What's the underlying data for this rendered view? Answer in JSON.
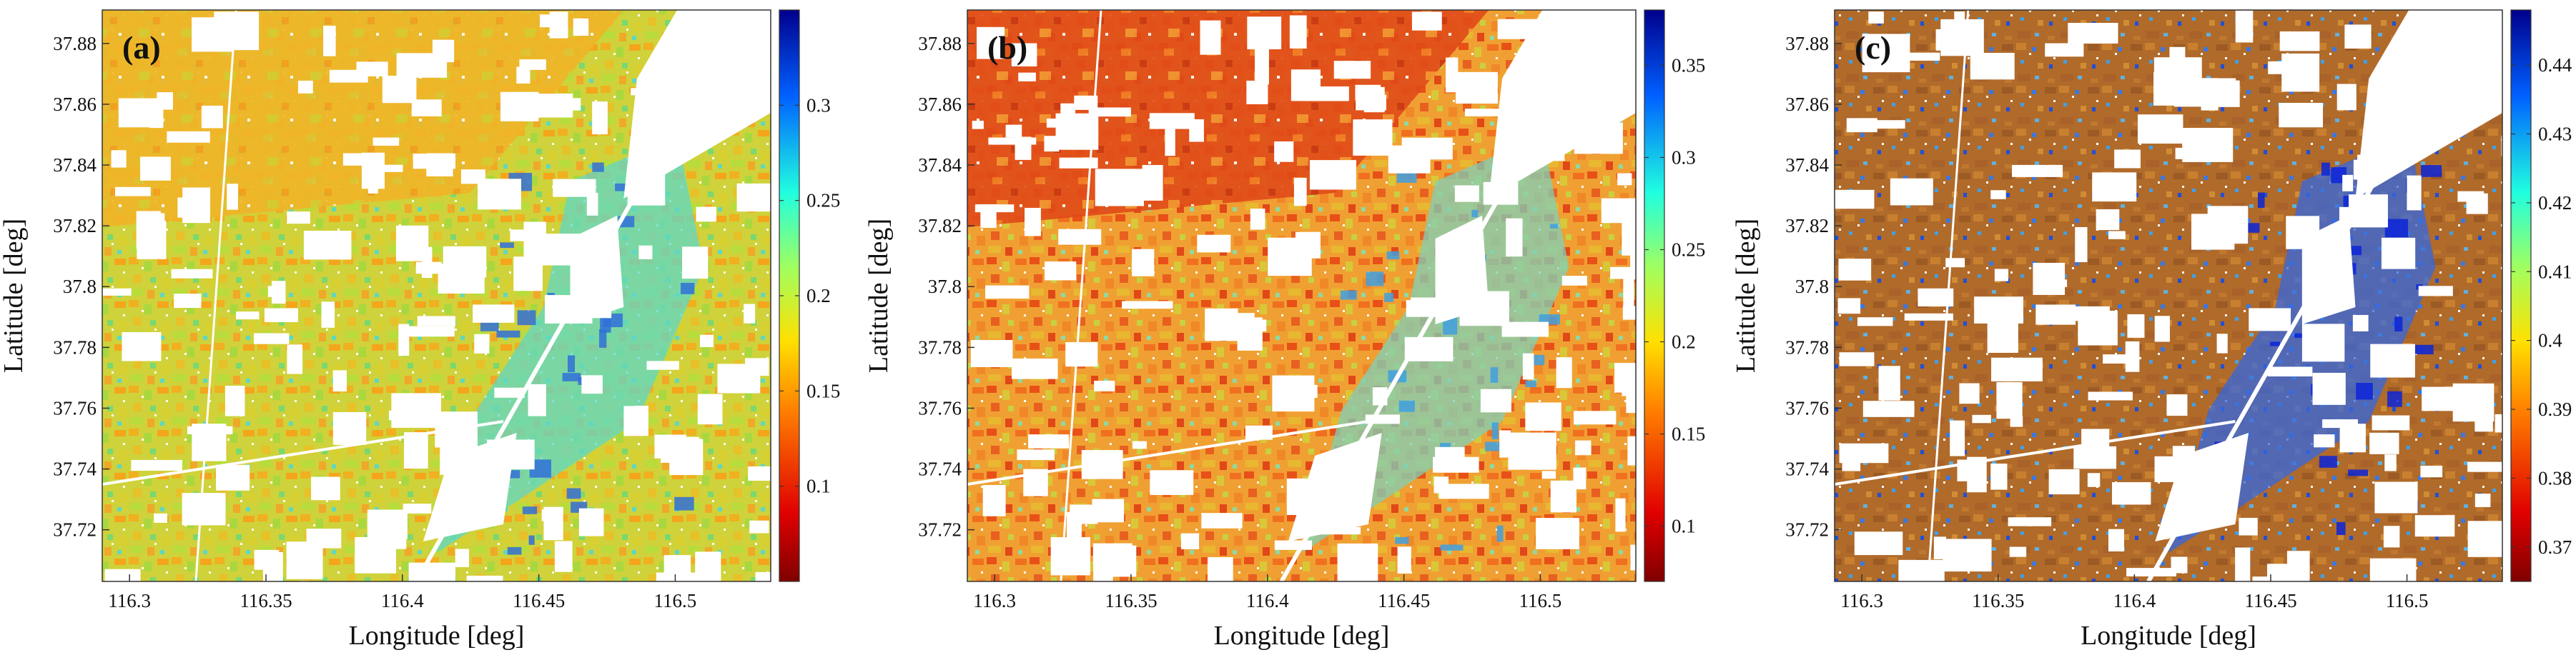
{
  "xlabel": "Longitude [deg]",
  "ylabel": "Latitude [deg]",
  "x_ticks": [
    "116.3",
    "116.35",
    "116.4",
    "116.45",
    "116.5"
  ],
  "x_tick_values": [
    116.3,
    116.35,
    116.4,
    116.45,
    116.5
  ],
  "y_ticks": [
    "37.88",
    "37.86",
    "37.84",
    "37.82",
    "37.8",
    "37.78",
    "37.76",
    "37.74",
    "37.72"
  ],
  "y_tick_values": [
    37.88,
    37.86,
    37.84,
    37.82,
    37.8,
    37.78,
    37.76,
    37.74,
    37.72
  ],
  "xlim": [
    116.29,
    116.535
  ],
  "ylim": [
    37.703,
    37.891
  ],
  "colormap": "jet-reversed",
  "panels": [
    {
      "label": "(a)",
      "colorbar_ticks": [
        "0.1",
        "0.15",
        "0.2",
        "0.25",
        "0.3"
      ],
      "colorbar_values": [
        0.1,
        0.15,
        0.2,
        0.25,
        0.3
      ],
      "colorbar_range": [
        0.05,
        0.35
      ],
      "dominant_colors": [
        "#f2b01e",
        "#c8d838",
        "#5fd8c8"
      ]
    },
    {
      "label": "(b)",
      "colorbar_ticks": [
        "0.1",
        "0.15",
        "0.2",
        "0.25",
        "0.3",
        "0.35"
      ],
      "colorbar_values": [
        0.1,
        0.15,
        0.2,
        0.25,
        0.3,
        0.35
      ],
      "colorbar_range": [
        0.07,
        0.38
      ],
      "dominant_colors": [
        "#e84a18",
        "#f0a030",
        "#c8d040"
      ]
    },
    {
      "label": "(c)",
      "colorbar_ticks": [
        "0.37",
        "0.38",
        "0.39",
        "0.4",
        "0.41",
        "0.42",
        "0.43",
        "0.44"
      ],
      "colorbar_values": [
        0.37,
        0.38,
        0.39,
        0.4,
        0.41,
        0.42,
        0.43,
        0.44
      ],
      "colorbar_range": [
        0.365,
        0.448
      ],
      "dominant_colors": [
        "#b5702a",
        "#3a6ed8",
        "#1030d8"
      ]
    }
  ]
}
